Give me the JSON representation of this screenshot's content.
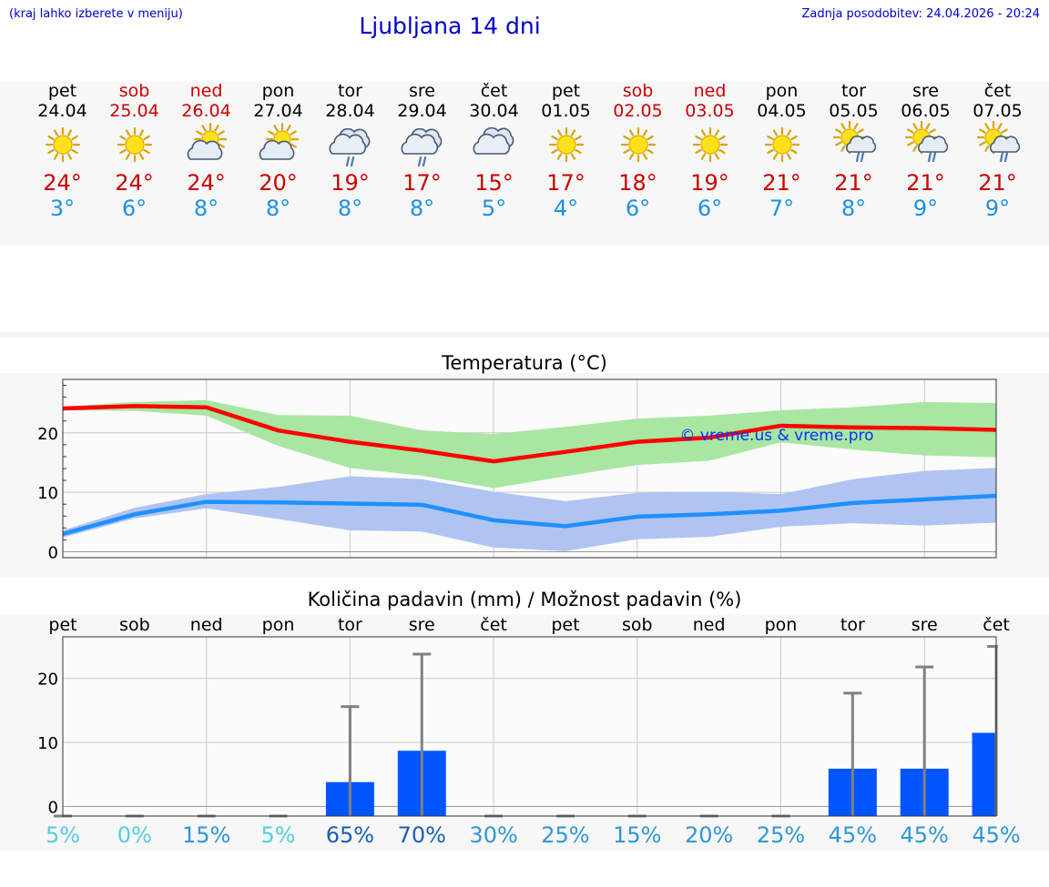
{
  "header": {
    "note": "(kraj lahko izberete v meniju)",
    "title": "Ljubljana 14 dni",
    "updated": "Zadnja posodobitev: 24.04.2026 - 20:24"
  },
  "forecast": {
    "days": [
      {
        "name": "pet",
        "date": "24.04",
        "weekend": false,
        "icon": "sun-icon",
        "max": "24°",
        "min": "3°"
      },
      {
        "name": "sob",
        "date": "25.04",
        "weekend": true,
        "icon": "sun-icon",
        "max": "24°",
        "min": "6°"
      },
      {
        "name": "ned",
        "date": "26.04",
        "weekend": true,
        "icon": "sun-cloud-icon",
        "max": "24°",
        "min": "8°"
      },
      {
        "name": "pon",
        "date": "27.04",
        "weekend": false,
        "icon": "sun-cloud-icon",
        "max": "20°",
        "min": "8°"
      },
      {
        "name": "tor",
        "date": "28.04",
        "weekend": false,
        "icon": "rain-cloud-icon",
        "max": "19°",
        "min": "8°"
      },
      {
        "name": "sre",
        "date": "29.04",
        "weekend": false,
        "icon": "rain-cloud-icon",
        "max": "17°",
        "min": "8°"
      },
      {
        "name": "čet",
        "date": "30.04",
        "weekend": false,
        "icon": "cloud-icon",
        "max": "15°",
        "min": "5°"
      },
      {
        "name": "pet",
        "date": "01.05",
        "weekend": false,
        "icon": "sun-icon",
        "max": "17°",
        "min": "4°"
      },
      {
        "name": "sob",
        "date": "02.05",
        "weekend": true,
        "icon": "sun-icon",
        "max": "18°",
        "min": "6°"
      },
      {
        "name": "ned",
        "date": "03.05",
        "weekend": true,
        "icon": "sun-icon",
        "max": "19°",
        "min": "6°"
      },
      {
        "name": "pon",
        "date": "04.05",
        "weekend": false,
        "icon": "sun-icon",
        "max": "21°",
        "min": "7°"
      },
      {
        "name": "tor",
        "date": "05.05",
        "weekend": false,
        "icon": "sun-rain-icon",
        "max": "21°",
        "min": "8°"
      },
      {
        "name": "sre",
        "date": "06.05",
        "weekend": false,
        "icon": "sun-rain-icon",
        "max": "21°",
        "min": "9°"
      },
      {
        "name": "čet",
        "date": "07.05",
        "weekend": false,
        "icon": "sun-rain-icon",
        "max": "21°",
        "min": "9°"
      }
    ]
  },
  "chart_data": [
    {
      "type": "line",
      "title": "Temperatura (°C)",
      "watermark": "© vreme.us & vreme.pro",
      "ylim": [
        -1,
        29
      ],
      "yticks": [
        0,
        10,
        20
      ],
      "x": [
        0,
        1,
        2,
        3,
        4,
        5,
        6,
        7,
        8,
        9,
        10,
        11,
        12,
        13
      ],
      "series": [
        {
          "name": "max",
          "color": "#ff0000",
          "values": [
            24.1,
            24.5,
            24.3,
            20.4,
            18.5,
            17,
            15.2,
            16.8,
            18.5,
            19.2,
            21.2,
            20.9,
            20.8,
            20.5
          ]
        },
        {
          "name": "min",
          "color": "#1e90ff",
          "values": [
            3,
            6.3,
            8.4,
            8.3,
            8.1,
            7.9,
            5.3,
            4.3,
            5.9,
            6.3,
            6.9,
            8.2,
            8.8,
            9.4
          ]
        }
      ],
      "bands": [
        {
          "name": "max-range",
          "color": "#a8e6a1",
          "low": [
            23.8,
            23.7,
            22.9,
            17.8,
            14.1,
            12.8,
            10.7,
            12.7,
            14.6,
            15.3,
            18.4,
            17.2,
            16.2,
            15.9
          ],
          "high": [
            24.4,
            25.2,
            25.5,
            23,
            22.9,
            20.4,
            19.8,
            21,
            22.4,
            22.9,
            23.8,
            24.3,
            25.2,
            25
          ]
        },
        {
          "name": "min-range",
          "color": "#b0c4f2",
          "low": [
            2.4,
            5.6,
            7.3,
            5.5,
            3.6,
            3.4,
            0.7,
            0.1,
            2.1,
            2.5,
            4.2,
            4.8,
            4.4,
            4.9
          ],
          "high": [
            3.6,
            7.4,
            9.7,
            10.9,
            12.7,
            12.2,
            10.1,
            8.5,
            9.9,
            10.1,
            9.7,
            12.2,
            13.6,
            14.1
          ]
        }
      ]
    },
    {
      "type": "bar",
      "title": "Količina padavin (mm) / Možnost padavin (%)",
      "ylim": [
        -1.5,
        26.5
      ],
      "yticks": [
        0,
        10,
        20
      ],
      "categories": [
        "pet",
        "sob",
        "ned",
        "pon",
        "tor",
        "sre",
        "čet",
        "pet",
        "sob",
        "ned",
        "pon",
        "tor",
        "sre",
        "čet"
      ],
      "values": [
        0,
        0,
        0,
        0,
        3.8,
        8.7,
        0,
        0,
        0,
        0,
        0,
        5.9,
        5.9,
        11.5
      ],
      "error_high": [
        0,
        0,
        0,
        0,
        15.6,
        23.8,
        0,
        0,
        0,
        0,
        0,
        17.7,
        21.8,
        25
      ],
      "probability": [
        "5%",
        "0%",
        "15%",
        "5%",
        "65%",
        "70%",
        "30%",
        "25%",
        "15%",
        "20%",
        "25%",
        "45%",
        "45%",
        "45%"
      ],
      "bar_color": "#0055ff",
      "error_color": "#808080"
    }
  ]
}
